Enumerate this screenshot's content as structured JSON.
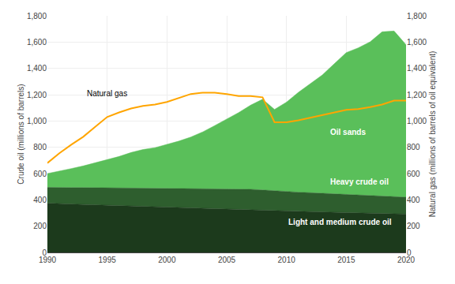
{
  "chart_data": {
    "type": "area",
    "stacked": true,
    "grid": true,
    "x": [
      1990,
      1991,
      1992,
      1993,
      1994,
      1995,
      1996,
      1997,
      1998,
      1999,
      2000,
      2001,
      2002,
      2003,
      2004,
      2005,
      2006,
      2007,
      2008,
      2009,
      2010,
      2011,
      2012,
      2013,
      2014,
      2015,
      2016,
      2017,
      2018,
      2019,
      2020
    ],
    "series": [
      {
        "name": "Light and medium crude oil",
        "type": "area",
        "color": "#1c3a1c",
        "values": [
          375,
          370,
          368,
          365,
          362,
          358,
          355,
          352,
          348,
          345,
          342,
          340,
          338,
          335,
          332,
          330,
          328,
          325,
          322,
          318,
          315,
          312,
          310,
          308,
          305,
          302,
          300,
          298,
          296,
          294,
          292
        ]
      },
      {
        "name": "Heavy crude oil",
        "type": "area",
        "color": "#2e5e2e",
        "values": [
          120,
          122,
          125,
          128,
          130,
          133,
          135,
          138,
          140,
          142,
          145,
          147,
          150,
          152,
          153,
          155,
          156,
          155,
          153,
          150,
          148,
          146,
          144,
          142,
          140,
          138,
          136,
          134,
          132,
          130,
          128
        ]
      },
      {
        "name": "Oil sands",
        "type": "area",
        "color": "#5abf5a",
        "values": [
          105,
          125,
          145,
          165,
          190,
          215,
          240,
          270,
          295,
          310,
          335,
          360,
          390,
          430,
          480,
          530,
          580,
          640,
          690,
          620,
          680,
          760,
          830,
          900,
          990,
          1080,
          1120,
          1170,
          1250,
          1260,
          1160
        ]
      },
      {
        "name": "Natural gas",
        "type": "line",
        "axis": "y2",
        "color": "#FFA500",
        "values": [
          680,
          755,
          820,
          880,
          955,
          1030,
          1065,
          1095,
          1115,
          1125,
          1145,
          1175,
          1205,
          1215,
          1215,
          1205,
          1190,
          1190,
          1180,
          990,
          990,
          1005,
          1025,
          1045,
          1065,
          1085,
          1090,
          1105,
          1125,
          1155,
          1155
        ]
      }
    ],
    "ylabel": "Crude oil (millions of barrels)",
    "y2label": "Natural gas (millions of barrels of oil equivalent)",
    "xlim": [
      1990,
      2020
    ],
    "xticks": [
      1990,
      1995,
      2000,
      2005,
      2010,
      2015,
      2020
    ],
    "ylim": [
      0,
      1800
    ],
    "yticks": [
      0,
      200,
      400,
      600,
      800,
      {
        "value": 1000,
        "label": "1,000"
      },
      {
        "value": 1200,
        "label": "1,200"
      },
      {
        "value": 1400,
        "label": "1,400"
      },
      {
        "value": 1600,
        "label": "1,600"
      },
      {
        "value": 1800,
        "label": "1,800"
      }
    ],
    "y2lim": [
      0,
      1800
    ],
    "y2ticks": [
      0,
      200,
      400,
      600,
      800,
      {
        "value": 1000,
        "label": "1,000"
      },
      {
        "value": 1200,
        "label": "1,200"
      },
      {
        "value": 1400,
        "label": "1,400"
      },
      {
        "value": 1600,
        "label": "1,600"
      },
      {
        "value": 1800,
        "label": "1,800"
      }
    ],
    "annotations": [
      {
        "text": "Natural gas",
        "x": 1993.2,
        "y": 1165,
        "color": "#000000"
      },
      {
        "text": "Oil sands",
        "x": 2013.5,
        "y": 870,
        "color": "#ffffff"
      },
      {
        "text": "Heavy crude oil",
        "x": 2013.5,
        "y": 490,
        "color": "#ffffff"
      },
      {
        "text": "Light and medium crude oil",
        "x": 2010.0,
        "y": 185,
        "color": "#ffffff"
      }
    ]
  }
}
